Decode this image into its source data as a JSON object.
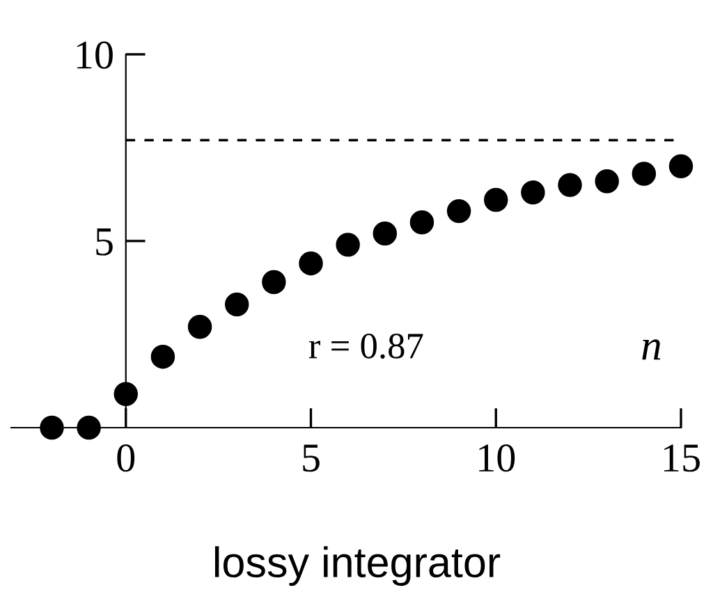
{
  "chart_data": {
    "type": "scatter",
    "title": "lossy integrator",
    "xlabel": "n",
    "x": [
      -2,
      -1,
      0,
      1,
      2,
      3,
      4,
      5,
      6,
      7,
      8,
      9,
      10,
      11,
      12,
      13,
      14,
      15
    ],
    "values": [
      0,
      0,
      0.9,
      1.9,
      2.7,
      3.3,
      3.9,
      4.4,
      4.9,
      5.2,
      5.5,
      5.8,
      6.1,
      6.3,
      6.5,
      6.6,
      6.8,
      7.0
    ],
    "color": "#000000",
    "marker": "circle",
    "xlim": [
      -3.1,
      15
    ],
    "ylim": [
      0,
      10
    ],
    "xticks": [
      0,
      5,
      10,
      15
    ],
    "yticks": [
      5,
      10
    ],
    "ref_lines": [
      {
        "axis": "y",
        "value": 7.7,
        "line_style": "dashed",
        "color": "#000000"
      }
    ],
    "annotations": [
      "r = 0.87"
    ],
    "grid": false
  }
}
